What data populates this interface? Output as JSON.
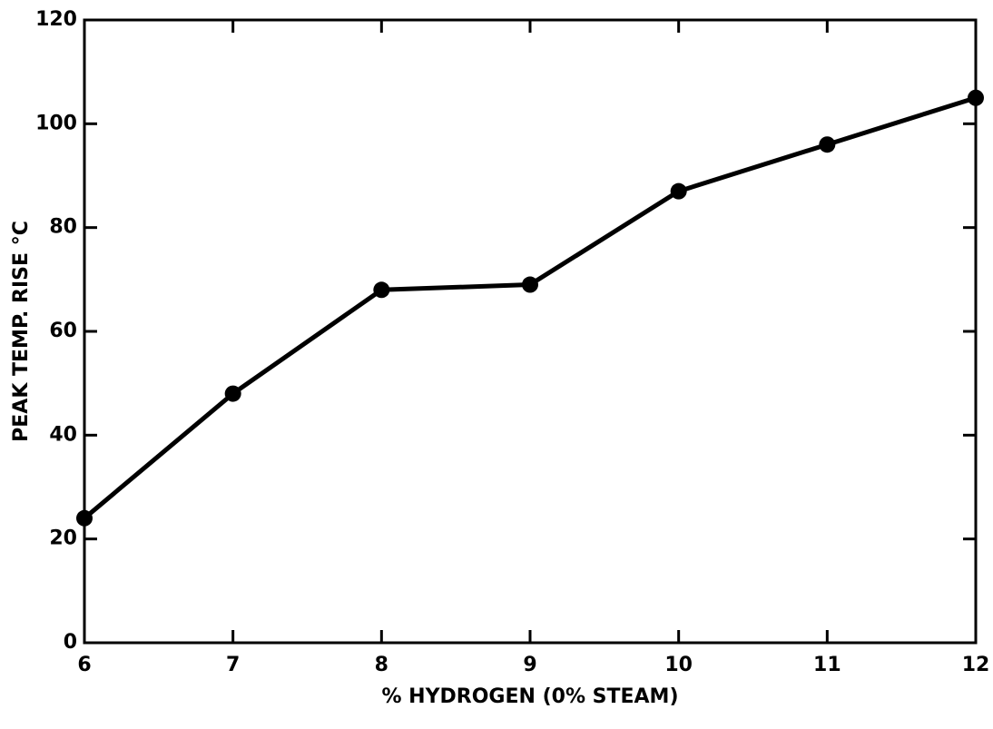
{
  "chart_data": {
    "type": "line",
    "xlabel": "% HYDROGEN (0%  STEAM)",
    "ylabel": "PEAK TEMP. RISE °C",
    "x": [
      6,
      7,
      8,
      9,
      10,
      11,
      12
    ],
    "series": [
      {
        "color": "#000000",
        "values": [
          24,
          48,
          68,
          69,
          87,
          96,
          105
        ]
      }
    ],
    "xlim": [
      6,
      12
    ],
    "xticks": [
      6,
      7,
      8,
      9,
      10,
      11,
      12
    ],
    "ylim": [
      0,
      120
    ],
    "yticks": [
      0,
      20,
      40,
      60,
      80,
      100,
      120
    ]
  }
}
